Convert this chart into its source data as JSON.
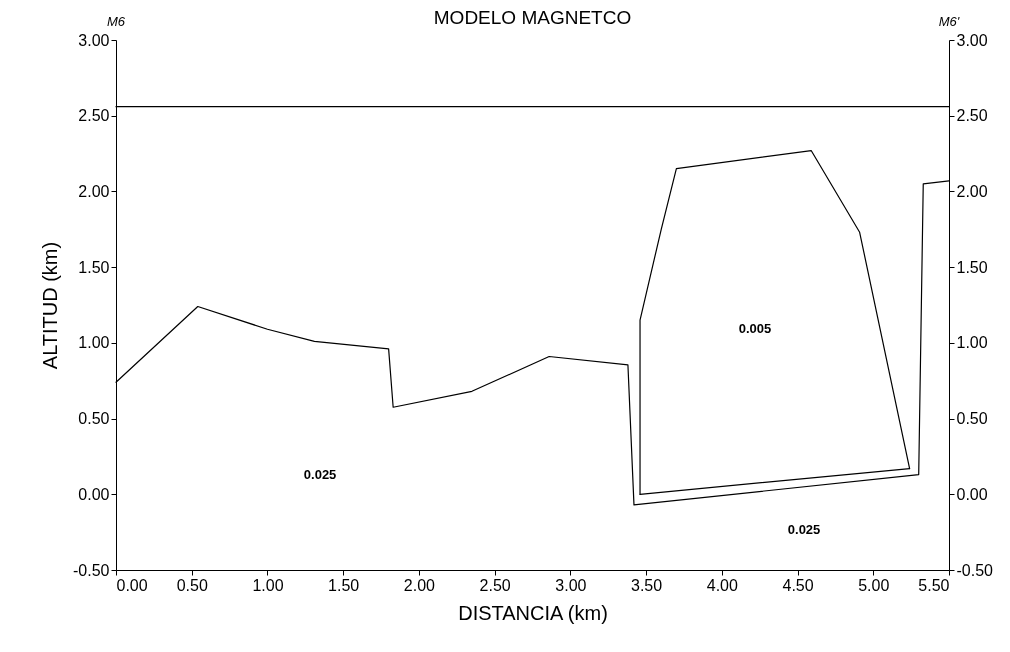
{
  "chart_data": {
    "type": "line",
    "title": "MODELO MAGNETCO",
    "xlabel": "DISTANCIA (km)",
    "ylabel": "ALTITUD (km)",
    "xlim": [
      0,
      5.5
    ],
    "xticks": [
      {
        "value": 0,
        "label": "0.00"
      },
      {
        "value": 0.5,
        "label": "0.50"
      },
      {
        "value": 1,
        "label": "1.00"
      },
      {
        "value": 1.5,
        "label": "1.50"
      },
      {
        "value": 2,
        "label": "2.00"
      },
      {
        "value": 2.5,
        "label": "2.50"
      },
      {
        "value": 3,
        "label": "3.00"
      },
      {
        "value": 3.5,
        "label": "3.50"
      },
      {
        "value": 4,
        "label": "4.00"
      },
      {
        "value": 4.5,
        "label": "4.50"
      },
      {
        "value": 5,
        "label": "5.00"
      },
      {
        "value": 5.5,
        "label": "5.50"
      }
    ],
    "ylim": [
      -0.5,
      3
    ],
    "yticks": [
      {
        "value": -0.5,
        "label": "-0.50"
      },
      {
        "value": 0,
        "label": "0.00"
      },
      {
        "value": 0.5,
        "label": "0.50"
      },
      {
        "value": 1,
        "label": "1.00"
      },
      {
        "value": 1.5,
        "label": "1.50"
      },
      {
        "value": 2,
        "label": "2.00"
      },
      {
        "value": 2.5,
        "label": "2.50"
      },
      {
        "value": 3,
        "label": "3.00"
      }
    ],
    "y2lim": [
      -0.5,
      3
    ],
    "y2ticks": [
      {
        "value": -0.5,
        "label": "-0.50"
      },
      {
        "value": 0,
        "label": "0.00"
      },
      {
        "value": 0.5,
        "label": "0.50"
      },
      {
        "value": 1,
        "label": "1.00"
      },
      {
        "value": 1.5,
        "label": "1.50"
      },
      {
        "value": 2,
        "label": "2.00"
      },
      {
        "value": 2.5,
        "label": "2.50"
      },
      {
        "value": 3,
        "label": "3.00"
      }
    ],
    "grid": false,
    "line_style": "solid",
    "series": [
      {
        "color": "#000000",
        "x": [
          0,
          5.5
        ],
        "values": [
          2.56,
          2.56
        ]
      },
      {
        "color": "#000000",
        "x": [
          0,
          0.54,
          1.0,
          1.31,
          1.8,
          1.83,
          2.35,
          2.86,
          3.38,
          3.42,
          5.3,
          5.33,
          5.5
        ],
        "values": [
          0.74,
          1.24,
          1.09,
          1.01,
          0.96,
          0.575,
          0.68,
          0.91,
          0.855,
          -0.07,
          0.13,
          2.05,
          2.07
        ]
      },
      {
        "color": "#000000",
        "x": [
          3.46,
          3.46,
          3.6,
          3.7,
          4.59,
          4.91,
          5.24
        ],
        "values": [
          0.0,
          1.15,
          1.75,
          2.15,
          2.27,
          1.73,
          0.17
        ]
      },
      {
        "color": "#000000",
        "x": [
          3.46,
          5.24
        ],
        "values": [
          0.0,
          0.17
        ]
      }
    ],
    "annotations": [
      "M6",
      "M6'",
      "0.025",
      "0.005",
      "0.025"
    ]
  }
}
